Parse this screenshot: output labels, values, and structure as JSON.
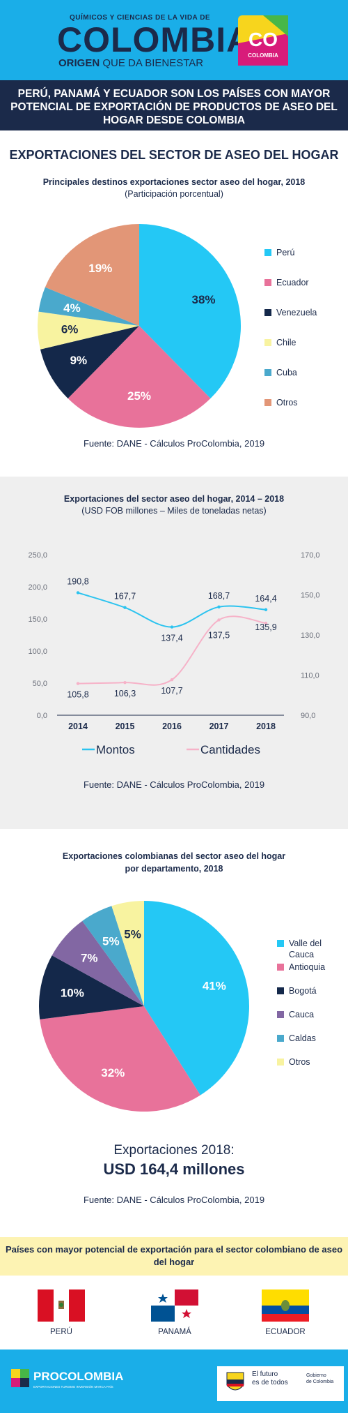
{
  "header": {
    "tagline_top": "QUÍMICOS Y CIENCIAS DE LA VIDA DE",
    "brand": "COLOMBIA",
    "tagline_bold": "ORIGEN",
    "tagline_rest": "QUE DA BIENESTAR",
    "co_logo_text": "CO",
    "co_logo_sub": "COLOMBIA",
    "colors": {
      "sky": "#1aaee8",
      "navy": "#1b2a4a"
    }
  },
  "headline": "PERÚ, PANAMÁ Y ECUADOR SON LOS PAÍSES CON MAYOR POTENCIAL DE EXPORTACIÓN DE PRODUCTOS DE ASEO DEL HOGAR DESDE COLOMBIA",
  "section_title": "EXPORTACIONES DEL SECTOR DE ASEO DEL HOGAR",
  "chart1_meta": {
    "title": "Principales destinos exportaciones sector aseo del hogar, 2018",
    "subtitle": "(Participación porcentual)",
    "source": "Fuente: DANE - Cálculos ProColombia, 2019"
  },
  "chart2_meta": {
    "title": "Exportaciones del sector aseo del hogar, 2014 – 2018",
    "subtitle": "(USD FOB millones – Miles de toneladas netas)",
    "source": "Fuente: DANE - Cálculos ProColombia, 2019"
  },
  "chart3_meta": {
    "title": "Exportaciones colombianas del sector aseo del hogar",
    "title2": "por departamento, 2018",
    "source": "Fuente: DANE - Cálculos ProColombia, 2019"
  },
  "chart_data": [
    {
      "type": "pie",
      "categories": [
        "Perú",
        "Ecuador",
        "Venezuela",
        "Chile",
        "Cuba",
        "Otros"
      ],
      "values": [
        38,
        25,
        9,
        6,
        4,
        19
      ],
      "labels": [
        "38%",
        "25%",
        "9%",
        "6%",
        "4%",
        "19%"
      ],
      "colors": [
        "#24c8f5",
        "#e8729a",
        "#14284a",
        "#f8f3a0",
        "#4aa9cc",
        "#e29677"
      ],
      "label_colors": [
        "#1b2a4a",
        "#ffffff",
        "#ffffff",
        "#1b2a4a",
        "#ffffff",
        "#ffffff"
      ],
      "legend_position": "right"
    },
    {
      "type": "line",
      "categories": [
        "2014",
        "2015",
        "2016",
        "2017",
        "2018"
      ],
      "series": [
        {
          "name": "Montos",
          "values": [
            190.8,
            167.7,
            137.4,
            168.7,
            164.4
          ],
          "labels": [
            "190,8",
            "167,7",
            "137,4",
            "168,7",
            "164,4"
          ],
          "color": "#2bc3ef",
          "axis": "left"
        },
        {
          "name": "Cantidades",
          "values": [
            105.8,
            106.3,
            107.7,
            137.5,
            135.9
          ],
          "labels": [
            "105,8",
            "106,3",
            "107,7",
            "137,5",
            "135,9"
          ],
          "color": "#f6b2c8",
          "axis": "right"
        }
      ],
      "y_left": {
        "ticks": [
          "0,0",
          "50,0",
          "100,0",
          "150,0",
          "200,0",
          "250,0"
        ],
        "range": [
          0,
          250
        ]
      },
      "y_right": {
        "ticks": [
          "90,0",
          "110,0",
          "130,0",
          "150,0",
          "170,0"
        ],
        "range": [
          90,
          170
        ]
      },
      "grid": false,
      "legend_position": "bottom"
    },
    {
      "type": "pie",
      "categories": [
        "Valle del Cauca",
        "Antioquia",
        "Bogotá",
        "Cauca",
        "Caldas",
        "Otros"
      ],
      "values": [
        41,
        32,
        10,
        7,
        5,
        5
      ],
      "labels": [
        "41%",
        "32%",
        "10%",
        "7%",
        "5%",
        "5%"
      ],
      "colors": [
        "#24c8f5",
        "#e8729a",
        "#14284a",
        "#8267a3",
        "#4aa9cc",
        "#f8f3a0"
      ],
      "label_colors": [
        "#ffffff",
        "#ffffff",
        "#ffffff",
        "#ffffff",
        "#ffffff",
        "#1b2a4a"
      ],
      "legend_position": "right"
    }
  ],
  "totals": {
    "title": "Exportaciones 2018:",
    "value": "USD 164,4 millones",
    "source": "Fuente: DANE - Cálculos ProColombia, 2019"
  },
  "countries": {
    "heading": "Países con mayor potencial de exportación para el sector colombiano de aseo del hogar",
    "items": [
      "PERÚ",
      "PANAMÁ",
      "ECUADOR"
    ]
  },
  "footer": {
    "brand": "PROCOLOMBIA",
    "brand_tag": "EXPORTACIONES TURISMO INVERSIÓN MARCA PAÍS",
    "gov_line1": "El futuro",
    "gov_line2": "es de todos",
    "gov_right1": "Gobierno",
    "gov_right2": "de Colombia"
  }
}
